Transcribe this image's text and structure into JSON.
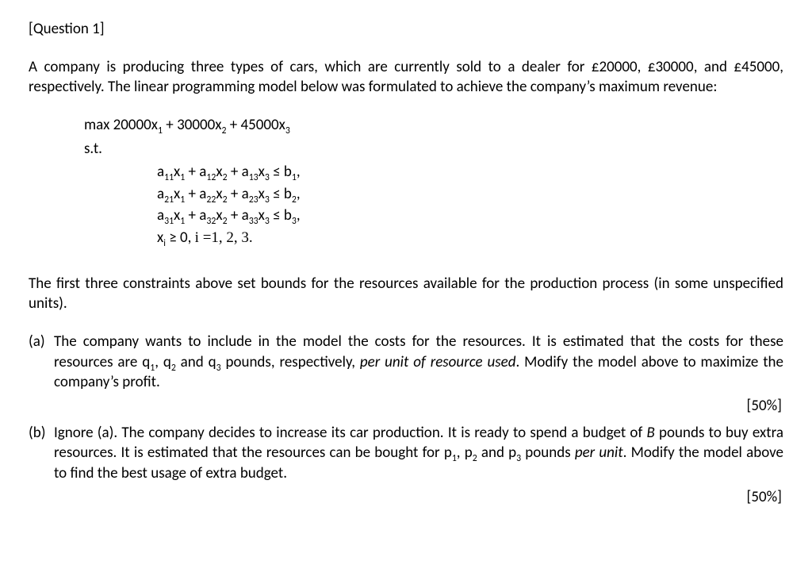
{
  "header": "[Question 1]",
  "intro": "A company is producing three types of cars, which are currently sold to a dealer for £20000, £30000, and £45000, respectively. The linear programming model below was formulated to achieve the company’s maximum revenue:",
  "lp": {
    "obj_prefix": "max ",
    "c1": "20000",
    "c2": "30000",
    "c3": "45000",
    "st": "s.t.",
    "a": [
      [
        "11",
        "12",
        "13",
        "1"
      ],
      [
        "21",
        "22",
        "23",
        "2"
      ],
      [
        "31",
        "32",
        "33",
        "3"
      ]
    ],
    "nonneg_var": "x",
    "nonneg_index": "i",
    "nonneg_rel": " ≥ 0, ",
    "nonneg_tail": "i =1, 2, 3."
  },
  "mid": "The first three constraints above set bounds for the resources available for the production process (in some unspecified units).",
  "parts": {
    "a": {
      "label": "(a)",
      "text_lead": "The company wants to include in the model the costs for the resources. It is estimated that the costs for these resources are ",
      "q1": "q",
      "q1s": "1",
      "sep1": ", ",
      "q2": "q",
      "q2s": "2",
      "sep2": " and ",
      "q3": "q",
      "q3s": "3",
      "text_mid": " pounds, respectively, ",
      "italic": "per unit of resource used",
      "text_tail": ". Modify the model above to maximize the company’s profit.",
      "marks": "[50%]"
    },
    "b": {
      "label": "(b)",
      "text_lead": "Ignore (a). The company decides to increase its car production. It is ready to spend a budget of ",
      "B": "B",
      "text_mid1": " pounds to buy extra resources. It is estimated that the resources can be bought for ",
      "p1": "p",
      "p1s": "1",
      "sep1": ", ",
      "p2": "p",
      "p2s": "2",
      "sep2": " and ",
      "p3": "p",
      "p3s": "3",
      "text_mid2": " pounds ",
      "italic": "per unit",
      "text_tail": ". Modify the model above to find the best usage of extra budget.",
      "marks": "[50%]"
    }
  }
}
